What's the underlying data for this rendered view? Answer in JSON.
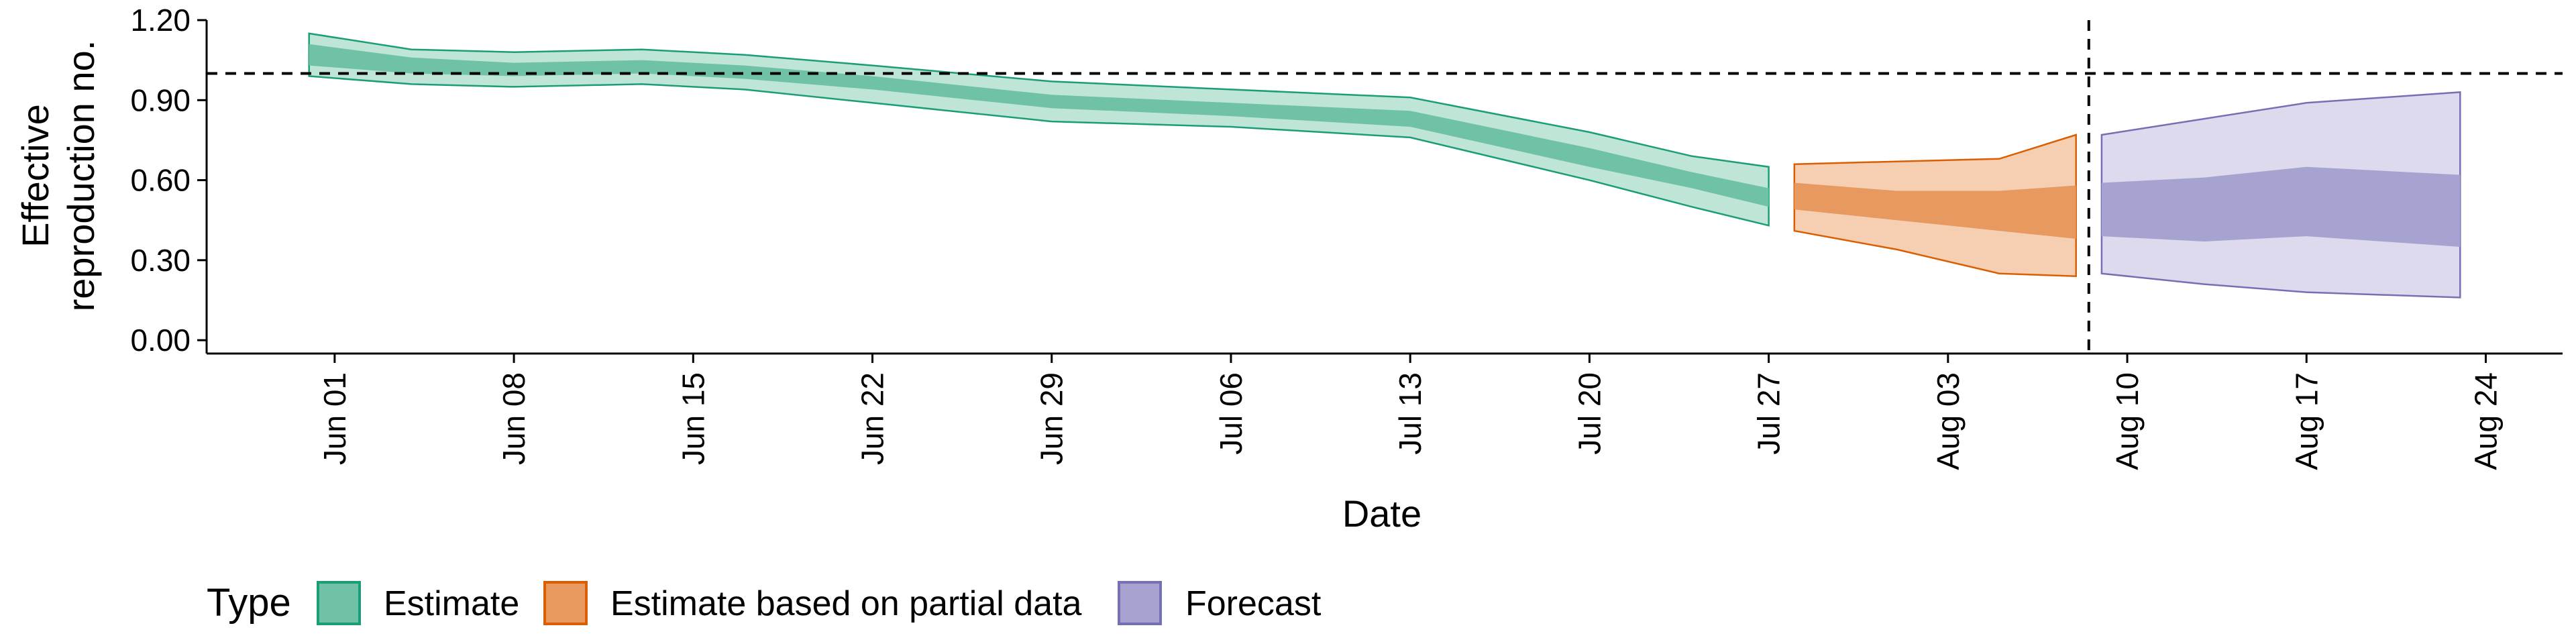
{
  "chart_data": {
    "type": "area",
    "xlabel": "Date",
    "ylabel": [
      "Effective",
      "reproduction no."
    ],
    "ylim": [
      -0.05,
      1.2
    ],
    "x_range": [
      "2020-05-27",
      "2020-08-27"
    ],
    "yticks": [
      0.0,
      0.3,
      0.6,
      0.9,
      1.2
    ],
    "ytick_labels": [
      "0.00",
      "0.30",
      "0.60",
      "0.90",
      "1.20"
    ],
    "xticks": [
      "2020-06-01",
      "2020-06-08",
      "2020-06-15",
      "2020-06-22",
      "2020-06-29",
      "2020-07-06",
      "2020-07-13",
      "2020-07-20",
      "2020-07-27",
      "2020-08-03",
      "2020-08-10",
      "2020-08-17",
      "2020-08-24"
    ],
    "xtick_labels": [
      "Jun 01",
      "Jun 08",
      "Jun 15",
      "Jun 22",
      "Jun 29",
      "Jul 06",
      "Jul 13",
      "Jul 20",
      "Jul 27",
      "Aug 03",
      "Aug 10",
      "Aug 17",
      "Aug 24"
    ],
    "reference_line_y": 1.0,
    "forecast_start_date": "2020-08-08",
    "grid": false,
    "legend": {
      "title": "Type",
      "position": "bottom-left",
      "items": [
        {
          "label": "Estimate",
          "fill": "#6fc2a5",
          "border": "#1b9e77"
        },
        {
          "label": "Estimate based on partial data",
          "fill": "#e7995f",
          "border": "#d95f02"
        },
        {
          "label": "Forecast",
          "fill": "#a7a3d0",
          "border": "#7570b3"
        }
      ]
    },
    "series": [
      {
        "name": "Estimate",
        "outer_color": "#bfe5d7",
        "inner_color": "#6fc2a5",
        "line_color": "#1b9e77",
        "points": [
          {
            "x": "2020-05-31",
            "lower90": 0.99,
            "lower50": 1.03,
            "upper50": 1.11,
            "upper90": 1.15
          },
          {
            "x": "2020-06-04",
            "lower90": 0.96,
            "lower50": 1.0,
            "upper50": 1.06,
            "upper90": 1.09
          },
          {
            "x": "2020-06-08",
            "lower90": 0.95,
            "lower50": 0.99,
            "upper50": 1.04,
            "upper90": 1.08
          },
          {
            "x": "2020-06-13",
            "lower90": 0.96,
            "lower50": 1.0,
            "upper50": 1.05,
            "upper90": 1.09
          },
          {
            "x": "2020-06-17",
            "lower90": 0.94,
            "lower50": 0.98,
            "upper50": 1.03,
            "upper90": 1.07
          },
          {
            "x": "2020-06-22",
            "lower90": 0.89,
            "lower50": 0.94,
            "upper50": 0.99,
            "upper90": 1.03
          },
          {
            "x": "2020-06-29",
            "lower90": 0.82,
            "lower50": 0.87,
            "upper50": 0.92,
            "upper90": 0.97
          },
          {
            "x": "2020-07-06",
            "lower90": 0.8,
            "lower50": 0.84,
            "upper50": 0.89,
            "upper90": 0.94
          },
          {
            "x": "2020-07-13",
            "lower90": 0.76,
            "lower50": 0.8,
            "upper50": 0.86,
            "upper90": 0.91
          },
          {
            "x": "2020-07-20",
            "lower90": 0.6,
            "lower50": 0.65,
            "upper50": 0.72,
            "upper90": 0.78
          },
          {
            "x": "2020-07-24",
            "lower90": 0.5,
            "lower50": 0.57,
            "upper50": 0.63,
            "upper90": 0.69
          },
          {
            "x": "2020-07-27",
            "lower90": 0.43,
            "lower50": 0.5,
            "upper50": 0.57,
            "upper90": 0.65
          }
        ]
      },
      {
        "name": "Estimate based on partial data",
        "outer_color": "#f6cfb3",
        "inner_color": "#e7995f",
        "line_color": "#d95f02",
        "points": [
          {
            "x": "2020-07-28",
            "lower90": 0.41,
            "lower50": 0.49,
            "upper50": 0.59,
            "upper90": 0.66
          },
          {
            "x": "2020-08-01",
            "lower90": 0.34,
            "lower50": 0.45,
            "upper50": 0.56,
            "upper90": 0.67
          },
          {
            "x": "2020-08-05",
            "lower90": 0.25,
            "lower50": 0.41,
            "upper50": 0.56,
            "upper90": 0.68
          },
          {
            "x": "2020-08-08",
            "lower90": 0.24,
            "lower50": 0.38,
            "upper50": 0.58,
            "upper90": 0.77
          }
        ]
      },
      {
        "name": "Forecast",
        "outer_color": "#dcdaec",
        "inner_color": "#a7a3d0",
        "line_color": "#7570b3",
        "points": [
          {
            "x": "2020-08-09",
            "lower90": 0.25,
            "lower50": 0.39,
            "upper50": 0.59,
            "upper90": 0.77
          },
          {
            "x": "2020-08-13",
            "lower90": 0.21,
            "lower50": 0.37,
            "upper50": 0.61,
            "upper90": 0.83
          },
          {
            "x": "2020-08-17",
            "lower90": 0.18,
            "lower50": 0.39,
            "upper50": 0.65,
            "upper90": 0.89
          },
          {
            "x": "2020-08-23",
            "lower90": 0.16,
            "lower50": 0.35,
            "upper50": 0.62,
            "upper90": 0.93
          }
        ]
      }
    ]
  }
}
